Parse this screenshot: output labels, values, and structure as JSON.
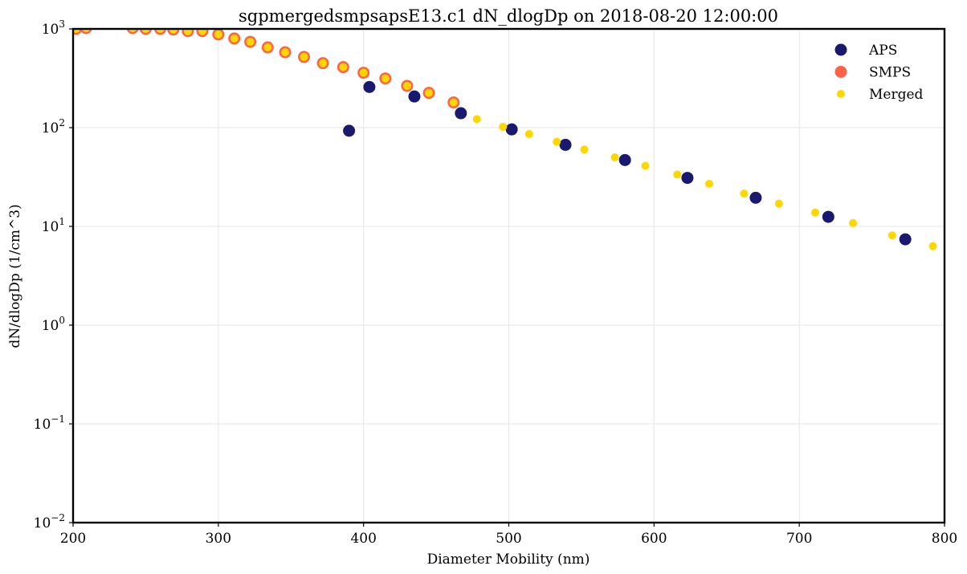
{
  "chart_data": {
    "type": "scatter",
    "title": "sgpmergedsmpsapsE13.c1 dN_dlogDp on 2018-08-20 12:00:00",
    "xlabel": "Diameter Mobility (nm)",
    "ylabel": "dN/dlogDp (1/cm^3)",
    "xlim": [
      200,
      800
    ],
    "ylim": [
      0.01,
      1000
    ],
    "yscale": "log",
    "grid": true,
    "legend_position": "top-right",
    "x_ticks": [
      200,
      300,
      400,
      500,
      600,
      700,
      800
    ],
    "y_ticks": [
      {
        "base": "10",
        "exp": "−2",
        "value": 0.01
      },
      {
        "base": "10",
        "exp": "−1",
        "value": 0.1
      },
      {
        "base": "10",
        "exp": "0",
        "value": 1
      },
      {
        "base": "10",
        "exp": "1",
        "value": 10
      },
      {
        "base": "10",
        "exp": "2",
        "value": 100
      },
      {
        "base": "10",
        "exp": "3",
        "value": 1000
      }
    ],
    "series": [
      {
        "name": "APS",
        "color": "#191970",
        "marker": "large",
        "points": [
          [
            390,
            93
          ],
          [
            404,
            258
          ],
          [
            435,
            207
          ],
          [
            467,
            140
          ],
          [
            502,
            96
          ],
          [
            539,
            67
          ],
          [
            580,
            47
          ],
          [
            623,
            31
          ],
          [
            670,
            19.5
          ],
          [
            720,
            12.5
          ],
          [
            773,
            7.4
          ]
        ]
      },
      {
        "name": "SMPS",
        "color": "#ff6347",
        "marker": "large",
        "points": [
          [
            202,
            1000
          ],
          [
            209,
            1020
          ],
          [
            241,
            1020
          ],
          [
            250,
            1000
          ],
          [
            260,
            1000
          ],
          [
            269,
            985
          ],
          [
            279,
            950
          ],
          [
            289,
            950
          ],
          [
            300,
            880
          ],
          [
            311,
            800
          ],
          [
            322,
            740
          ],
          [
            334,
            650
          ],
          [
            346,
            580
          ],
          [
            359,
            520
          ],
          [
            372,
            450
          ],
          [
            386,
            410
          ],
          [
            400,
            360
          ],
          [
            415,
            315
          ],
          [
            430,
            265
          ],
          [
            445,
            225
          ],
          [
            462,
            180
          ]
        ]
      },
      {
        "name": "Merged",
        "color": "#ffd700",
        "marker": "small",
        "points": [
          [
            202,
            1000
          ],
          [
            209,
            1020
          ],
          [
            241,
            1020
          ],
          [
            250,
            1000
          ],
          [
            260,
            1000
          ],
          [
            269,
            985
          ],
          [
            279,
            950
          ],
          [
            289,
            950
          ],
          [
            300,
            880
          ],
          [
            311,
            800
          ],
          [
            322,
            740
          ],
          [
            334,
            650
          ],
          [
            346,
            580
          ],
          [
            359,
            520
          ],
          [
            372,
            450
          ],
          [
            386,
            410
          ],
          [
            400,
            360
          ],
          [
            415,
            315
          ],
          [
            430,
            265
          ],
          [
            445,
            225
          ],
          [
            462,
            180
          ],
          [
            478,
            122
          ],
          [
            496,
            102
          ],
          [
            514,
            86
          ],
          [
            533,
            72
          ],
          [
            552,
            60
          ],
          [
            573,
            50
          ],
          [
            594,
            41
          ],
          [
            616,
            33.5
          ],
          [
            638,
            27
          ],
          [
            662,
            21.5
          ],
          [
            686,
            17
          ],
          [
            711,
            13.8
          ],
          [
            737,
            10.8
          ],
          [
            764,
            8.1
          ],
          [
            792,
            6.3
          ]
        ]
      }
    ]
  }
}
